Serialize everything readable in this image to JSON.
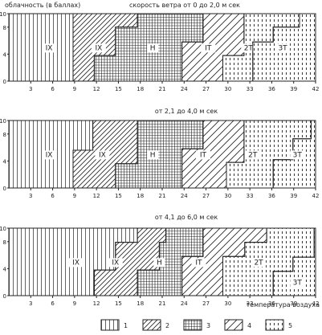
{
  "colors": {
    "ink": "#222222",
    "paper": "#ffffff"
  },
  "header": {
    "ylabel": "облачность (в баллах)",
    "xlabel": "температура воздуха"
  },
  "legend": {
    "items": [
      {
        "key": "1",
        "pattern": "vertical"
      },
      {
        "key": "2",
        "pattern": "diagonal"
      },
      {
        "key": "3",
        "pattern": "grid"
      },
      {
        "key": "4",
        "pattern": "diagonal-sparse"
      },
      {
        "key": "5",
        "pattern": "dashed-vertical"
      }
    ]
  },
  "chart_data": [
    {
      "type": "area",
      "title": "скорость ветра  от 0 до 2,0 м сек",
      "xlim": [
        0,
        42
      ],
      "ylim": [
        0,
        10
      ],
      "xticks": [
        "3",
        "6",
        "9",
        "12",
        "15",
        "18",
        "21",
        "24",
        "27",
        "30",
        "33",
        "36",
        "39",
        "42"
      ],
      "yticks": [
        "0",
        "4",
        "8",
        "10"
      ],
      "grid": false,
      "regions": [
        {
          "label": "IX",
          "pattern": "vertical",
          "boundary": [
            [
              8.8,
              0
            ],
            [
              8.8,
              10
            ]
          ]
        },
        {
          "label": "IX",
          "pattern": "diagonal",
          "boundary": [
            [
              11.7,
              0
            ],
            [
              11.7,
              3.8
            ],
            [
              14.6,
              3.8
            ],
            [
              14.6,
              8
            ],
            [
              17.6,
              8
            ],
            [
              17.6,
              10
            ]
          ]
        },
        {
          "label": "H",
          "pattern": "grid",
          "boundary": [
            [
              23.7,
              0
            ],
            [
              23.7,
              5.8
            ],
            [
              26.6,
              5.8
            ],
            [
              26.6,
              10
            ]
          ]
        },
        {
          "label": "IT",
          "pattern": "diagonal-sparse",
          "boundary": [
            [
              29.3,
              0
            ],
            [
              29.3,
              3.8
            ],
            [
              32.2,
              3.8
            ],
            [
              32.2,
              10
            ]
          ]
        },
        {
          "label": "2T",
          "pattern": "dashed-vertical",
          "boundary": [
            [
              33.4,
              0
            ],
            [
              33.4,
              5.8
            ],
            [
              36.2,
              5.8
            ],
            [
              36.2,
              8
            ],
            [
              39.8,
              8
            ],
            [
              39.8,
              10
            ]
          ]
        },
        {
          "label": "3T",
          "pattern": "dashed-vertical",
          "boundary": []
        }
      ]
    },
    {
      "type": "area",
      "title": "от 2,1 до 4,0 м сек",
      "xlim": [
        0,
        42
      ],
      "ylim": [
        0,
        10
      ],
      "xticks": [
        "3",
        "6",
        "9",
        "12",
        "15",
        "18",
        "21",
        "24",
        "27",
        "30",
        "33",
        "36",
        "39",
        "42"
      ],
      "yticks": [
        "0",
        "4",
        "8",
        "10"
      ],
      "grid": false,
      "regions": [
        {
          "label": "IX",
          "pattern": "vertical",
          "boundary": [
            [
              8.8,
              0
            ],
            [
              8.8,
              5.6
            ],
            [
              11.5,
              5.6
            ],
            [
              11.5,
              10
            ]
          ]
        },
        {
          "label": "IX",
          "pattern": "diagonal",
          "boundary": [
            [
              14.6,
              0
            ],
            [
              14.6,
              3.6
            ],
            [
              17.6,
              3.6
            ],
            [
              17.6,
              10
            ]
          ]
        },
        {
          "label": "H",
          "pattern": "grid",
          "boundary": [
            [
              23.7,
              0
            ],
            [
              23.7,
              5.8
            ],
            [
              26.6,
              5.8
            ],
            [
              26.6,
              10
            ]
          ]
        },
        {
          "label": "IT",
          "pattern": "diagonal-sparse",
          "boundary": [
            [
              29.8,
              0
            ],
            [
              29.8,
              3.8
            ],
            [
              32.2,
              3.8
            ],
            [
              32.2,
              10
            ]
          ]
        },
        {
          "label": "2T",
          "pattern": "dashed-vertical",
          "boundary": [
            [
              36.2,
              0
            ],
            [
              36.2,
              4.2
            ],
            [
              38.9,
              4.2
            ],
            [
              38.9,
              7.3
            ],
            [
              41.4,
              7.3
            ],
            [
              41.4,
              10
            ]
          ]
        },
        {
          "label": "3T",
          "pattern": "dashed-vertical",
          "boundary": []
        }
      ]
    },
    {
      "type": "area",
      "title": "от 4,1 до 6,0 м сек",
      "xlim": [
        0,
        42
      ],
      "ylim": [
        0,
        10
      ],
      "xticks": [
        "3",
        "6",
        "9",
        "12",
        "15",
        "18",
        "21",
        "24",
        "27",
        "30",
        "33",
        "36",
        "39",
        "42"
      ],
      "yticks": [
        "0",
        "4",
        "8",
        "10"
      ],
      "grid": false,
      "regions": [
        {
          "label": "IX",
          "pattern": "vertical",
          "boundary": [
            [
              11.7,
              0
            ],
            [
              11.7,
              3.8
            ],
            [
              14.6,
              3.8
            ],
            [
              14.6,
              7.9
            ],
            [
              17.6,
              7.9
            ],
            [
              17.6,
              10
            ]
          ]
        },
        {
          "label": "IX",
          "pattern": "diagonal",
          "boundary": [
            [
              17.6,
              0
            ],
            [
              17.6,
              3.8
            ],
            [
              20.6,
              3.8
            ],
            [
              20.6,
              7.9
            ],
            [
              21.5,
              7.9
            ],
            [
              21.5,
              10
            ]
          ]
        },
        {
          "label": "H",
          "pattern": "grid",
          "boundary": [
            [
              23.7,
              0
            ],
            [
              23.7,
              5.8
            ],
            [
              26.6,
              5.8
            ],
            [
              26.6,
              10
            ]
          ]
        },
        {
          "label": "IT",
          "pattern": "diagonal-sparse",
          "boundary": [
            [
              29.3,
              0
            ],
            [
              29.3,
              5.8
            ],
            [
              32.3,
              5.8
            ],
            [
              32.3,
              7.9
            ],
            [
              35.3,
              7.9
            ],
            [
              35.3,
              10
            ]
          ]
        },
        {
          "label": "2T",
          "pattern": "dashed-vertical",
          "boundary": [
            [
              36.2,
              0
            ],
            [
              36.2,
              3.6
            ],
            [
              38.9,
              3.6
            ],
            [
              38.9,
              5.7
            ],
            [
              41.8,
              5.7
            ],
            [
              41.8,
              10
            ]
          ]
        },
        {
          "label": "3T",
          "pattern": "dashed-vertical",
          "boundary": []
        }
      ]
    }
  ]
}
